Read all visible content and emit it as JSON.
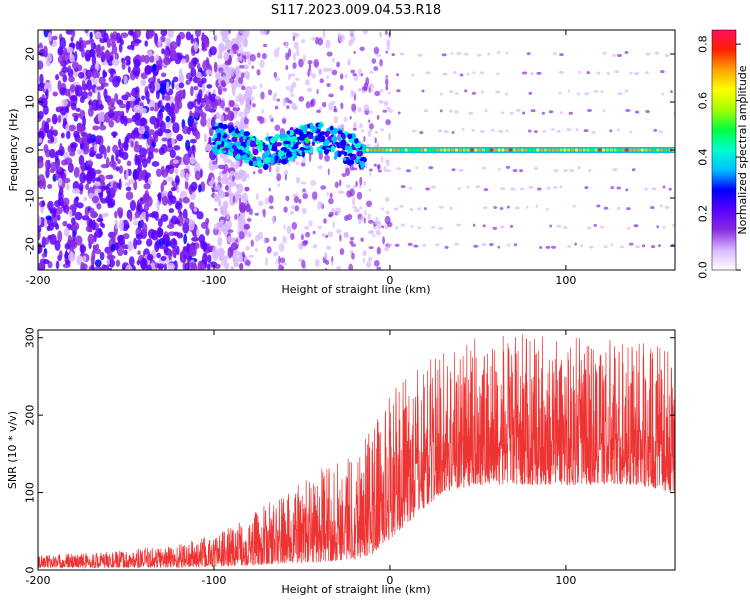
{
  "title": "S117.2023.009.04.53.R18",
  "chart_data": [
    {
      "type": "heatmap",
      "xlabel": "Height of straight line (km)",
      "ylabel": "Frequency (Hz)",
      "xlim": [
        -200,
        162
      ],
      "ylim": [
        -25,
        25
      ],
      "xticks": [
        -200,
        -100,
        0,
        100
      ],
      "yticks": [
        -20,
        -10,
        0,
        10,
        20
      ],
      "colorbar": {
        "label": "Normalized spectral amplitude",
        "range": [
          0,
          0.85
        ],
        "ticks": [
          0.0,
          0.2,
          0.4,
          0.6,
          0.8
        ],
        "colors": [
          "#ffffff",
          "#d8b8ff",
          "#8a2be2",
          "#5a00ff",
          "#0000ff",
          "#00bfff",
          "#00ffd0",
          "#00ff40",
          "#a0ff00",
          "#ffff00",
          "#ffa500",
          "#ff2000",
          "#ff1060"
        ]
      },
      "features": {
        "broadband_region_km": [
          -200,
          -100
        ],
        "tonal_line_frequency_hz": 0,
        "tonal_line_start_km": -100
      }
    },
    {
      "type": "line",
      "xlabel": "Height of straight line (km)",
      "ylabel": "SNR (10 * v/v)",
      "xlim": [
        -200,
        162
      ],
      "ylim": [
        0,
        310
      ],
      "xticks": [
        -200,
        -100,
        0,
        100
      ],
      "yticks": [
        0,
        100,
        200,
        300
      ],
      "color": "#ee3333",
      "profile": {
        "x": [
          -200,
          -150,
          -120,
          -100,
          -80,
          -60,
          -40,
          -20,
          -10,
          0,
          10,
          20,
          30,
          50,
          80,
          110,
          140,
          162
        ],
        "baseline": [
          3,
          3,
          3,
          4,
          6,
          8,
          10,
          14,
          20,
          40,
          60,
          80,
          100,
          110,
          110,
          110,
          110,
          100
        ],
        "peak": [
          20,
          25,
          35,
          45,
          70,
          100,
          130,
          160,
          190,
          230,
          250,
          270,
          290,
          300,
          305,
          300,
          300,
          280
        ]
      }
    }
  ]
}
